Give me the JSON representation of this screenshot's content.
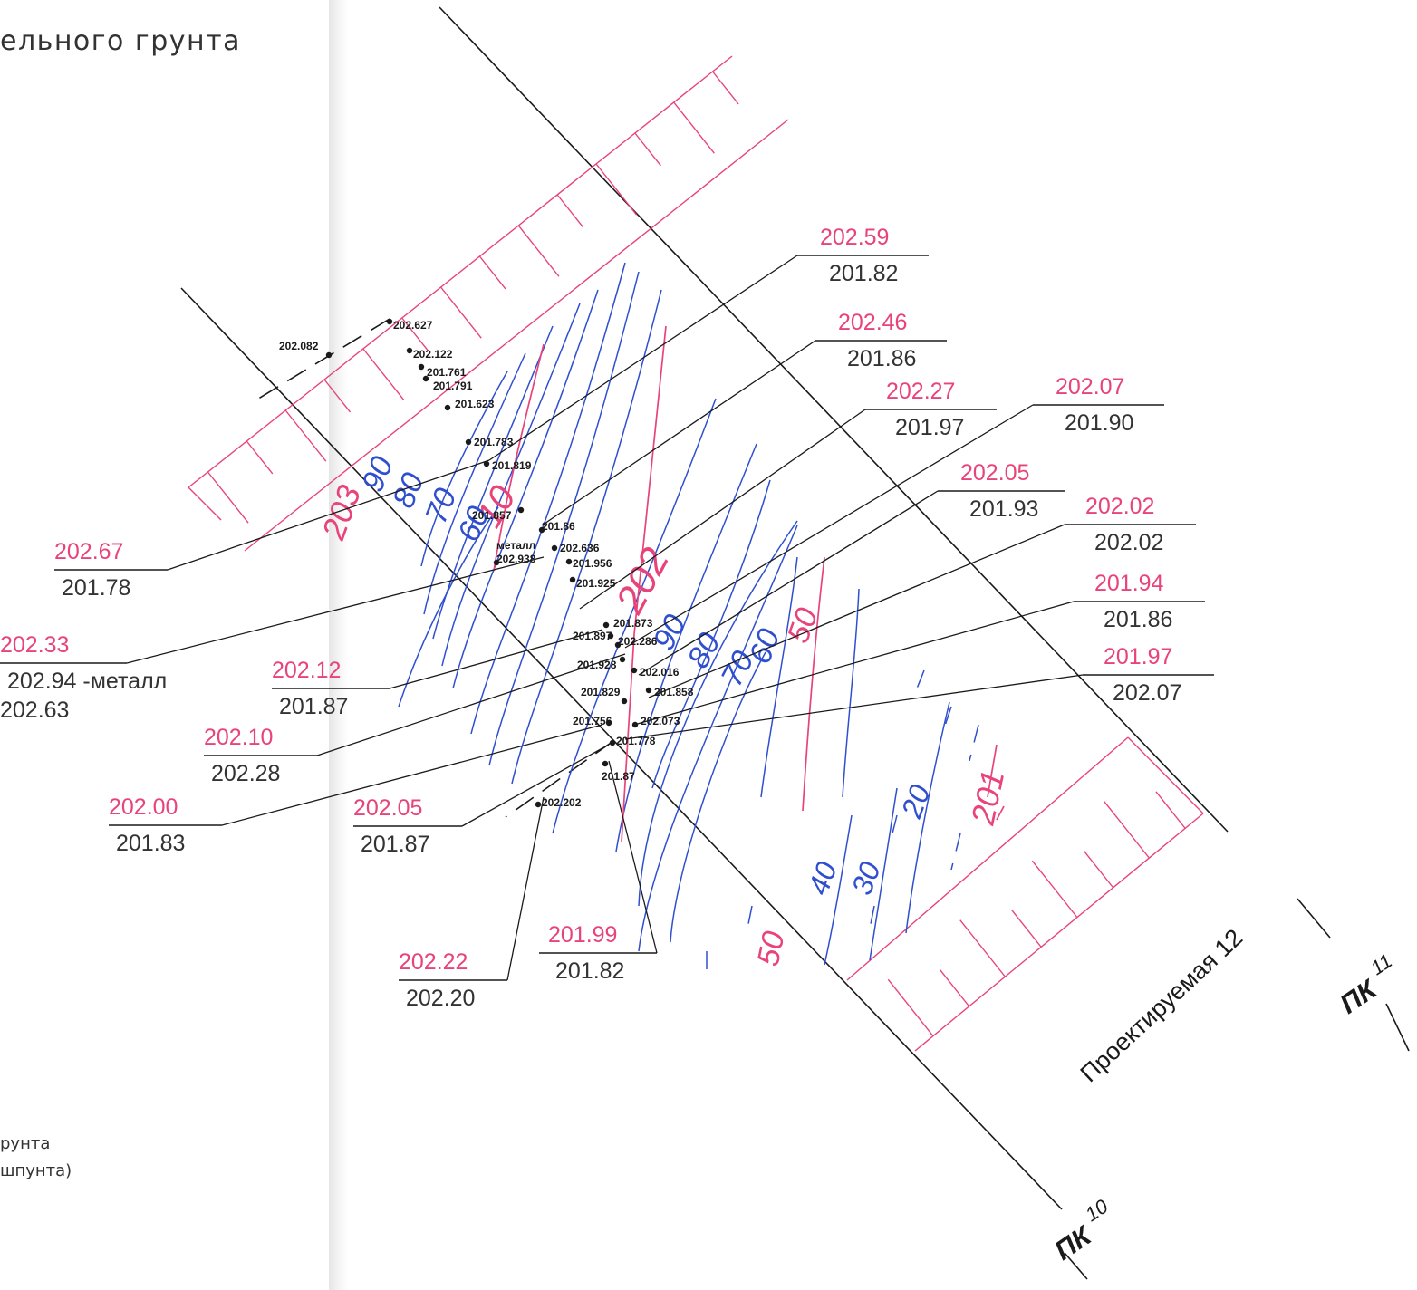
{
  "title_fragment": "ельного грунта",
  "legend": [
    "рунта",
    "шпунта)"
  ],
  "road_label": "Проектируемая 12",
  "pk": [
    {
      "prefix": "ПК",
      "num": "10"
    },
    {
      "prefix": "ПК",
      "num": "11"
    }
  ],
  "colors": {
    "red": "#e8447a",
    "blue": "#2f4fcf",
    "black": "#1a1a1a"
  },
  "callouts": [
    {
      "top": "202.59",
      "bottom": "201.82"
    },
    {
      "top": "202.46",
      "bottom": "201.86"
    },
    {
      "top": "202.27",
      "bottom": "201.97"
    },
    {
      "top": "202.07",
      "bottom": "201.90"
    },
    {
      "top": "202.05",
      "bottom": "201.93"
    },
    {
      "top": "202.02",
      "bottom": "202.02"
    },
    {
      "top": "201.94",
      "bottom": "201.86"
    },
    {
      "top": "201.97",
      "bottom": "202.07"
    },
    {
      "top": "202.67",
      "bottom": "201.78"
    },
    {
      "top": "202.33",
      "bottom": "202.94 -металл",
      "extra": "202.63"
    },
    {
      "top": "202.12",
      "bottom": "201.87"
    },
    {
      "top": "202.10",
      "bottom": "202.28"
    },
    {
      "top": "202.00",
      "bottom": "201.83"
    },
    {
      "top": "202.05",
      "bottom": "201.87"
    },
    {
      "top": "202.22",
      "bottom": "202.20"
    },
    {
      "top": "201.99",
      "bottom": "201.82"
    }
  ],
  "points": [
    "202.627",
    "202.082",
    "202.122",
    "201.761",
    "201.791",
    "201.623",
    "201.783",
    "201.819",
    "201.857",
    "201.86",
    "металл",
    "202.938",
    "202.636",
    "201.956",
    "201.925",
    "201.873",
    "202.286",
    "201.897",
    "201.928",
    "202.016",
    "201.829",
    "201.858",
    "201.756",
    "202.073",
    "201.778",
    "201.87",
    "202.202"
  ],
  "contours": {
    "red": [
      "203",
      "10",
      "202",
      "50",
      "201",
      "50"
    ],
    "blue": [
      "90",
      "80",
      "70",
      "60",
      "90",
      "80",
      "70",
      "60",
      "40",
      "30",
      "20"
    ]
  }
}
